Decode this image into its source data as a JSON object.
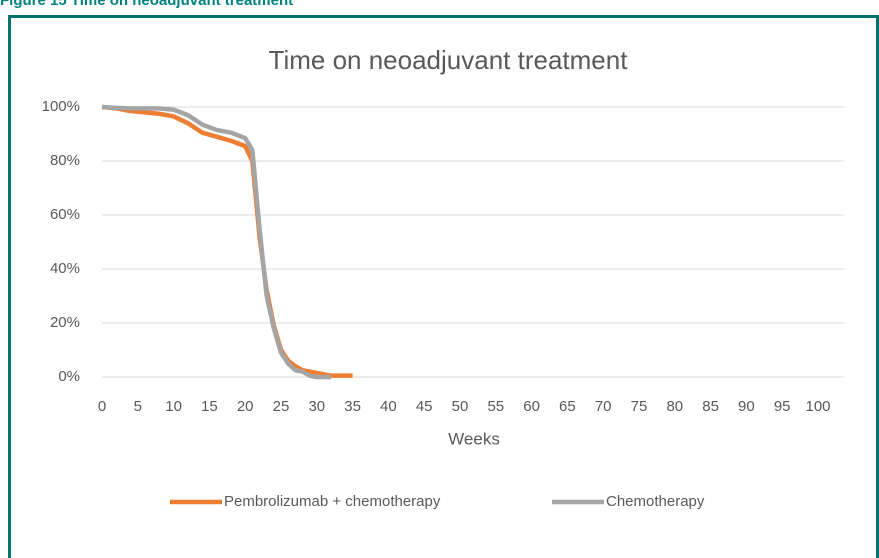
{
  "caption": "Figure 15 Time on neoadjuvant treatment",
  "chart_data": {
    "type": "line",
    "title": "Time on neoadjuvant treatment",
    "x_label": "Weeks",
    "x": [
      0,
      2,
      4,
      6,
      8,
      10,
      12,
      14,
      16,
      18,
      20,
      21,
      22,
      23,
      24,
      25,
      26,
      27,
      28,
      29,
      30,
      32,
      35
    ],
    "series": [
      {
        "name": "Pembrolizumab + chemotherapy",
        "color": "#ed7d31",
        "values": [
          100,
          99.5,
          98.5,
          98,
          97.5,
          96.5,
          94,
          90.5,
          89,
          87.5,
          85.5,
          80,
          52,
          32,
          19,
          10,
          6,
          4,
          2.5,
          2,
          1.5,
          0.5,
          0.5
        ]
      },
      {
        "name": "Chemotherapy",
        "color": "#a5a5a5",
        "values": [
          100,
          99.7,
          99.5,
          99.5,
          99.5,
          99,
          97,
          93.5,
          91.5,
          90.5,
          88.5,
          84,
          55,
          30,
          18,
          9,
          5,
          2.5,
          2,
          0.5,
          0,
          0,
          null
        ]
      }
    ],
    "xlim": [
      0,
      100
    ],
    "xticks": [
      0,
      5,
      10,
      15,
      20,
      25,
      30,
      35,
      40,
      45,
      50,
      55,
      60,
      65,
      70,
      75,
      80,
      85,
      90,
      95,
      100
    ],
    "ylim": [
      0,
      100
    ],
    "yticks": [
      {
        "value": 0,
        "label": "0%"
      },
      {
        "value": 20,
        "label": "20%"
      },
      {
        "value": 40,
        "label": "40%"
      },
      {
        "value": 60,
        "label": "60%"
      },
      {
        "value": 80,
        "label": "80%"
      },
      {
        "value": 100,
        "label": "100%"
      }
    ],
    "grid": true,
    "legend": "bottom"
  }
}
